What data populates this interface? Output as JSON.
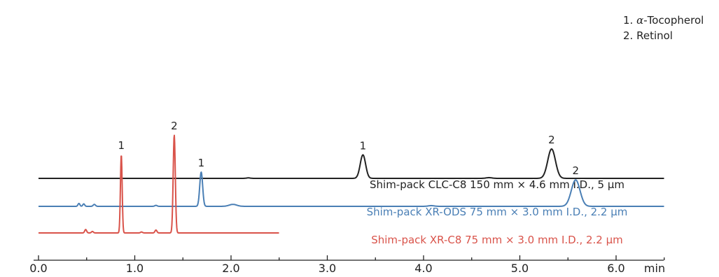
{
  "chart_data": {
    "type": "line",
    "title": "",
    "xlabel": "min",
    "ylabel": "",
    "xlim": [
      0.0,
      6.5
    ],
    "xticks": [
      "0.0",
      "1.0",
      "2.0",
      "3.0",
      "4.0",
      "5.0",
      "6.0"
    ],
    "grid": false,
    "legend_placement": "top-right",
    "peak_legend": [
      {
        "num": "1.",
        "greek": "α",
        "name": "-Tocopherol"
      },
      {
        "num": "2.",
        "greek": "",
        "name": "Retinol"
      }
    ],
    "series": [
      {
        "name": "Shim-pack CLC-C8 150 mm × 4.6 mm I.D., 5 µm",
        "color": "#222222",
        "x_range": [
          0.0,
          6.5
        ],
        "peaks": [
          {
            "label": "1",
            "x": 3.37,
            "height": 0.48,
            "width": 0.028
          },
          {
            "label": "2",
            "x": 5.33,
            "height": 0.6,
            "width": 0.04
          },
          {
            "label": "",
            "x": 2.18,
            "height": 0.01,
            "width": 0.02
          },
          {
            "label": "",
            "x": 4.68,
            "height": 0.015,
            "width": 0.03
          }
        ]
      },
      {
        "name": "Shim-pack XR-ODS 75 mm × 3.0 mm I.D., 2.2 µm",
        "color": "#4a7fb5",
        "x_range": [
          0.0,
          6.5
        ],
        "peaks": [
          {
            "label": "1",
            "x": 1.69,
            "height": 0.7,
            "width": 0.015
          },
          {
            "label": "2",
            "x": 5.58,
            "height": 0.54,
            "width": 0.045
          },
          {
            "label": "",
            "x": 0.42,
            "height": 0.06,
            "width": 0.01
          },
          {
            "label": "",
            "x": 0.47,
            "height": 0.05,
            "width": 0.01
          },
          {
            "label": "",
            "x": 0.58,
            "height": 0.04,
            "width": 0.012
          },
          {
            "label": "",
            "x": 1.22,
            "height": 0.02,
            "width": 0.012
          },
          {
            "label": "",
            "x": 2.02,
            "height": 0.04,
            "width": 0.04
          },
          {
            "label": "",
            "x": 4.08,
            "height": 0.015,
            "width": 0.03
          }
        ]
      },
      {
        "name": "Shim-pack XR-C8 75 mm × 3.0 mm I.D., 2.2 µm",
        "color": "#d9534a",
        "x_range": [
          0.0,
          2.5
        ],
        "peaks": [
          {
            "label": "1",
            "x": 0.86,
            "height": 1.6,
            "width": 0.009
          },
          {
            "label": "2",
            "x": 1.41,
            "height": 2.0,
            "width": 0.011
          },
          {
            "label": "",
            "x": 0.49,
            "height": 0.07,
            "width": 0.01
          },
          {
            "label": "",
            "x": 0.56,
            "height": 0.03,
            "width": 0.01
          },
          {
            "label": "",
            "x": 1.07,
            "height": 0.02,
            "width": 0.01
          },
          {
            "label": "",
            "x": 1.22,
            "height": 0.06,
            "width": 0.01
          }
        ]
      }
    ]
  }
}
